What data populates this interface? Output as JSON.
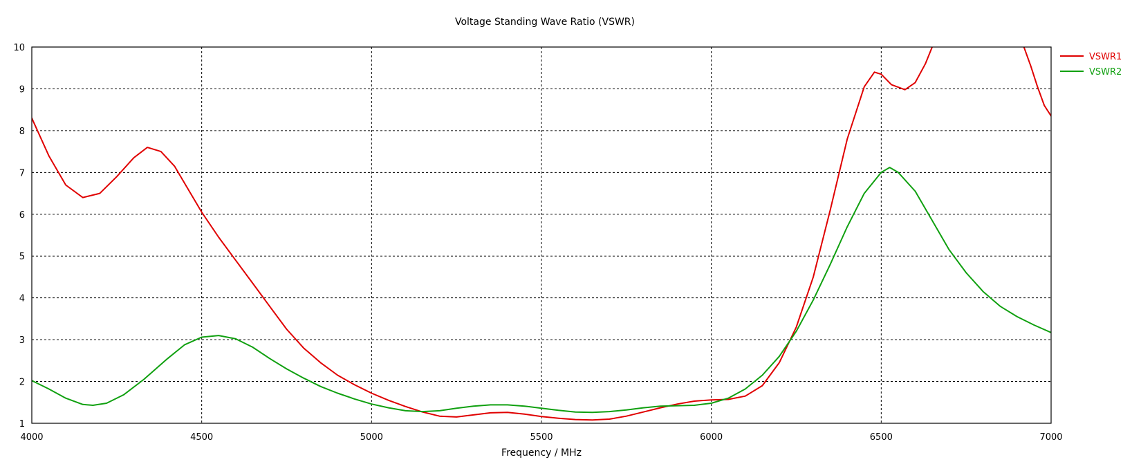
{
  "chart_data": {
    "type": "line",
    "title": "Voltage Standing Wave Ratio (VSWR)",
    "xlabel": "Frequency / MHz",
    "ylabel": "",
    "xlim": [
      4000,
      7000
    ],
    "ylim": [
      1,
      10
    ],
    "xticks": [
      4000,
      4500,
      5000,
      5500,
      6000,
      6500,
      7000
    ],
    "yticks": [
      1,
      2,
      3,
      4,
      5,
      6,
      7,
      8,
      9,
      10
    ],
    "grid": true,
    "legend_position": "top-right, outside plot",
    "series": [
      {
        "name": "VSWR1",
        "color": "#e00000",
        "points": [
          [
            4000,
            8.3
          ],
          [
            4050,
            7.4
          ],
          [
            4100,
            6.7
          ],
          [
            4150,
            6.4
          ],
          [
            4200,
            6.5
          ],
          [
            4250,
            6.9
          ],
          [
            4300,
            7.35
          ],
          [
            4340,
            7.6
          ],
          [
            4380,
            7.5
          ],
          [
            4420,
            7.15
          ],
          [
            4460,
            6.6
          ],
          [
            4500,
            6.05
          ],
          [
            4550,
            5.45
          ],
          [
            4600,
            4.9
          ],
          [
            4650,
            4.35
          ],
          [
            4700,
            3.8
          ],
          [
            4750,
            3.25
          ],
          [
            4800,
            2.8
          ],
          [
            4850,
            2.45
          ],
          [
            4900,
            2.15
          ],
          [
            4950,
            1.92
          ],
          [
            5000,
            1.72
          ],
          [
            5050,
            1.55
          ],
          [
            5100,
            1.4
          ],
          [
            5150,
            1.27
          ],
          [
            5200,
            1.17
          ],
          [
            5250,
            1.15
          ],
          [
            5300,
            1.2
          ],
          [
            5350,
            1.25
          ],
          [
            5400,
            1.26
          ],
          [
            5450,
            1.22
          ],
          [
            5500,
            1.16
          ],
          [
            5550,
            1.12
          ],
          [
            5600,
            1.09
          ],
          [
            5650,
            1.08
          ],
          [
            5700,
            1.1
          ],
          [
            5750,
            1.17
          ],
          [
            5800,
            1.27
          ],
          [
            5850,
            1.37
          ],
          [
            5900,
            1.46
          ],
          [
            5950,
            1.53
          ],
          [
            6000,
            1.56
          ],
          [
            6050,
            1.57
          ],
          [
            6100,
            1.65
          ],
          [
            6150,
            1.9
          ],
          [
            6200,
            2.45
          ],
          [
            6250,
            3.3
          ],
          [
            6300,
            4.5
          ],
          [
            6350,
            6.1
          ],
          [
            6400,
            7.8
          ],
          [
            6450,
            9.05
          ],
          [
            6480,
            9.4
          ],
          [
            6500,
            9.35
          ],
          [
            6530,
            9.1
          ],
          [
            6570,
            8.98
          ],
          [
            6600,
            9.15
          ],
          [
            6630,
            9.6
          ],
          [
            6650,
            10.0
          ]
        ],
        "points_segment_2": [
          [
            6920,
            10.0
          ],
          [
            6940,
            9.55
          ],
          [
            6960,
            9.05
          ],
          [
            6980,
            8.6
          ],
          [
            7000,
            8.35
          ]
        ]
      },
      {
        "name": "VSWR2",
        "color": "#10a010",
        "points": [
          [
            4000,
            2.02
          ],
          [
            4050,
            1.82
          ],
          [
            4100,
            1.6
          ],
          [
            4150,
            1.45
          ],
          [
            4180,
            1.43
          ],
          [
            4220,
            1.48
          ],
          [
            4270,
            1.68
          ],
          [
            4330,
            2.05
          ],
          [
            4400,
            2.55
          ],
          [
            4450,
            2.88
          ],
          [
            4500,
            3.06
          ],
          [
            4550,
            3.1
          ],
          [
            4600,
            3.02
          ],
          [
            4650,
            2.82
          ],
          [
            4700,
            2.55
          ],
          [
            4750,
            2.3
          ],
          [
            4800,
            2.08
          ],
          [
            4850,
            1.88
          ],
          [
            4900,
            1.72
          ],
          [
            4950,
            1.58
          ],
          [
            5000,
            1.46
          ],
          [
            5050,
            1.37
          ],
          [
            5100,
            1.3
          ],
          [
            5150,
            1.28
          ],
          [
            5200,
            1.3
          ],
          [
            5250,
            1.36
          ],
          [
            5300,
            1.41
          ],
          [
            5350,
            1.44
          ],
          [
            5400,
            1.44
          ],
          [
            5450,
            1.41
          ],
          [
            5500,
            1.36
          ],
          [
            5550,
            1.31
          ],
          [
            5600,
            1.27
          ],
          [
            5650,
            1.26
          ],
          [
            5700,
            1.28
          ],
          [
            5750,
            1.32
          ],
          [
            5800,
            1.37
          ],
          [
            5850,
            1.41
          ],
          [
            5900,
            1.42
          ],
          [
            5950,
            1.43
          ],
          [
            6000,
            1.48
          ],
          [
            6050,
            1.6
          ],
          [
            6100,
            1.82
          ],
          [
            6150,
            2.15
          ],
          [
            6200,
            2.6
          ],
          [
            6250,
            3.2
          ],
          [
            6300,
            3.95
          ],
          [
            6350,
            4.8
          ],
          [
            6400,
            5.7
          ],
          [
            6450,
            6.5
          ],
          [
            6500,
            7.0
          ],
          [
            6525,
            7.12
          ],
          [
            6550,
            7.0
          ],
          [
            6600,
            6.55
          ],
          [
            6650,
            5.85
          ],
          [
            6700,
            5.15
          ],
          [
            6750,
            4.6
          ],
          [
            6800,
            4.15
          ],
          [
            6850,
            3.8
          ],
          [
            6900,
            3.55
          ],
          [
            6950,
            3.35
          ],
          [
            7000,
            3.17
          ]
        ]
      }
    ]
  }
}
